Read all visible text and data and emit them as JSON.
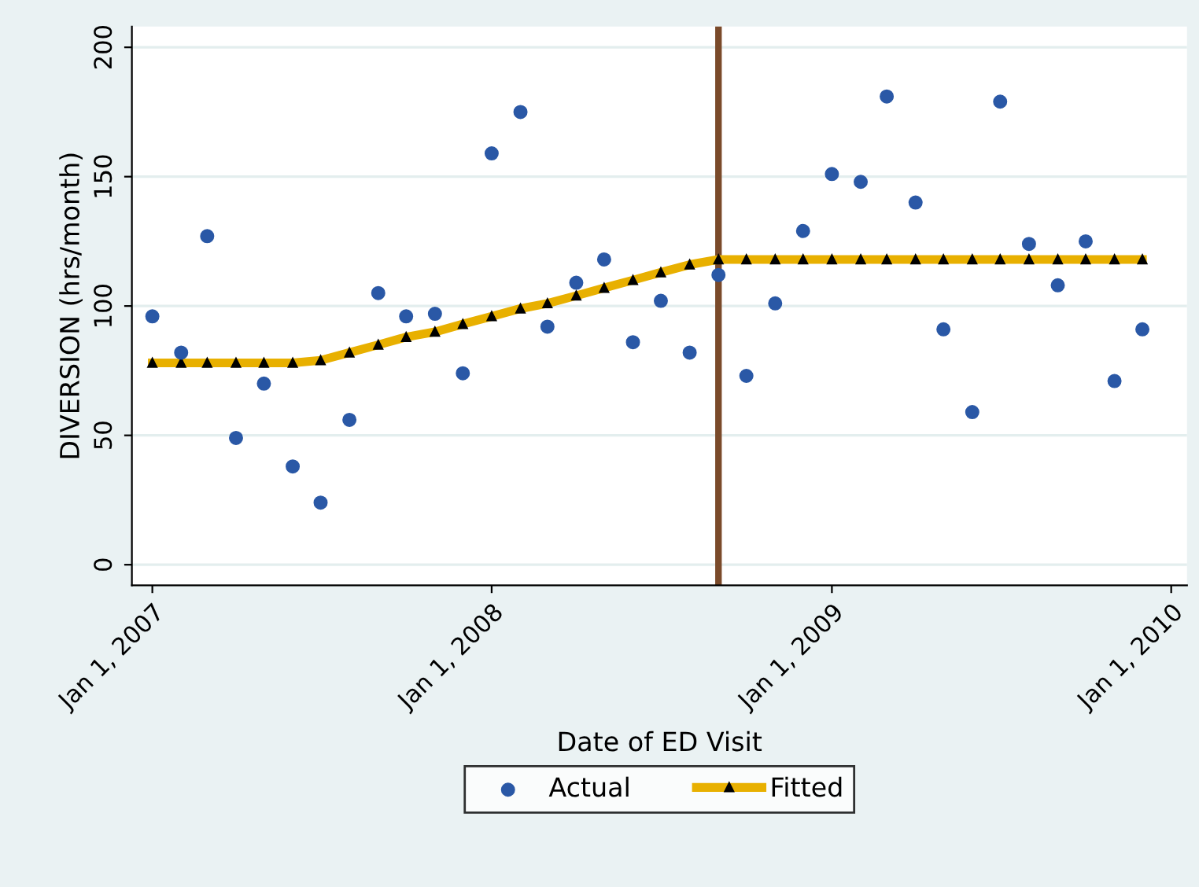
{
  "chart_data": {
    "type": "scatter",
    "xlabel": "Date of ED Visit",
    "ylabel": "DIVERSION (hrs/month)",
    "x": [
      "2007-01",
      "2007-02",
      "2007-03",
      "2007-04",
      "2007-05",
      "2007-06",
      "2007-07",
      "2007-08",
      "2007-09",
      "2007-10",
      "2007-11",
      "2007-12",
      "2008-01",
      "2008-02",
      "2008-03",
      "2008-04",
      "2008-05",
      "2008-06",
      "2008-07",
      "2008-08",
      "2008-09",
      "2008-10",
      "2008-11",
      "2008-12",
      "2009-01",
      "2009-02",
      "2009-03",
      "2009-04",
      "2009-05",
      "2009-06",
      "2009-07",
      "2009-08",
      "2009-09",
      "2009-10",
      "2009-11",
      "2009-12"
    ],
    "series": [
      {
        "name": "Actual",
        "type": "scatter",
        "color": "#2a58a6",
        "marker": "circle",
        "values": [
          96,
          82,
          127,
          49,
          70,
          38,
          24,
          56,
          105,
          96,
          97,
          74,
          159,
          175,
          92,
          109,
          118,
          86,
          102,
          82,
          112,
          73,
          101,
          129,
          151,
          148,
          181,
          140,
          91,
          59,
          179,
          124,
          108,
          125,
          71,
          91
        ]
      },
      {
        "name": "Fitted",
        "type": "line",
        "color": "#e8b000",
        "marker": "triangle",
        "line_style": "solid",
        "values": [
          78,
          78,
          78,
          78,
          78,
          78,
          79,
          82,
          85,
          88,
          90,
          93,
          96,
          99,
          101,
          104,
          107,
          110,
          113,
          116,
          118,
          118,
          118,
          118,
          118,
          118,
          118,
          118,
          118,
          118,
          118,
          118,
          118,
          118,
          118,
          118
        ]
      }
    ],
    "xlim": [
      "2006-12-10",
      "2010-01-18"
    ],
    "ylim": [
      -8,
      208
    ],
    "xticks": [
      {
        "value": "2007-01-01",
        "label": "Jan 1, 2007"
      },
      {
        "value": "2008-01-01",
        "label": "Jan 1, 2008"
      },
      {
        "value": "2009-01-01",
        "label": "Jan 1, 2009"
      },
      {
        "value": "2010-01-01",
        "label": "Jan 1, 2010"
      }
    ],
    "yticks": [
      0,
      50,
      100,
      150,
      200
    ],
    "ref_lines": [
      {
        "axis": "x",
        "value": "2008-09",
        "color": "#7a4a2a"
      }
    ],
    "grid": "y",
    "legend": "bottom"
  }
}
